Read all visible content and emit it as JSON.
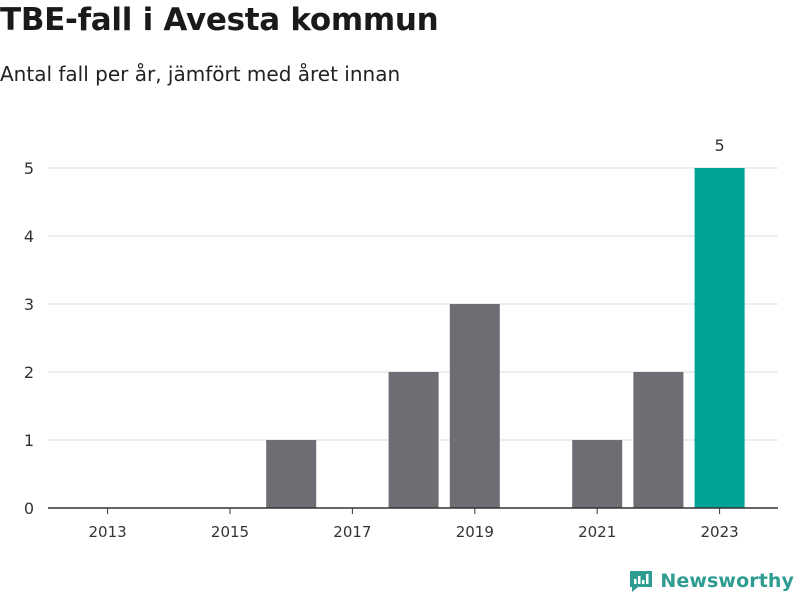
{
  "title": "TBE-fall i Avesta kommun",
  "subtitle": "Antal fall per år, jämfört med året innan",
  "logo": {
    "text": "Newsworthy",
    "icon": "newsworthy-logo-icon"
  },
  "colors": {
    "bar": "#6e6d73",
    "highlight": "#00a396",
    "grid": "#dddddd",
    "axis": "#333333",
    "brand": "#2f9c92"
  },
  "chart_data": {
    "type": "bar",
    "categories": [
      "2013",
      "2014",
      "2015",
      "2016",
      "2017",
      "2018",
      "2019",
      "2020",
      "2021",
      "2022",
      "2023"
    ],
    "values": [
      0,
      0,
      0,
      1,
      0,
      2,
      3,
      0,
      1,
      2,
      5
    ],
    "highlight_index": 10,
    "data_labels": [
      {
        "index": 10,
        "text": "5"
      }
    ],
    "x_tick_labels": [
      "2013",
      "2015",
      "2017",
      "2019",
      "2021",
      "2023"
    ],
    "y_ticks": [
      0,
      1,
      2,
      3,
      4,
      5
    ],
    "ylim": [
      0,
      5
    ],
    "grid": true,
    "legend": "none",
    "xlabel": "",
    "ylabel": ""
  }
}
